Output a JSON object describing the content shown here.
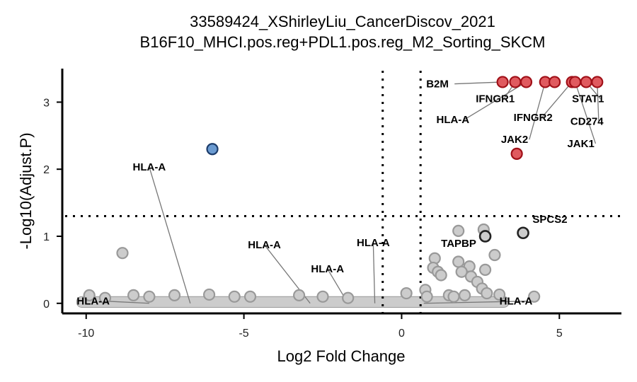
{
  "chart_data": {
    "type": "scatter",
    "title": "33589424_XShirleyLiu_CancerDiscov_2021",
    "subtitle": "B16F10_MHCI.pos.reg+PDL1.pos.reg_M2_Sorting_SKCM",
    "xlabel": "Log2 Fold Change",
    "ylabel": "-Log10(Adjust.P)",
    "xlim": [
      -10.6,
      6.9
    ],
    "ylim": [
      -0.15,
      3.5
    ],
    "x_ticks": [
      -10,
      -5,
      0,
      5
    ],
    "y_ticks": [
      0,
      1,
      2,
      3
    ],
    "grid": false,
    "thresholds": {
      "log2fc": [
        -0.6,
        0.6
      ],
      "neg_log10_p": 1.3
    },
    "colors": {
      "up": "#e05a5f",
      "down": "#6b9bd1",
      "ns": "#cccccc",
      "up_edge": "#a01018",
      "down_edge": "#1d3d6b",
      "ns_edge": "#999999",
      "highlight_edge": "#222222"
    },
    "points": [
      {
        "x": 3.2,
        "y": 3.3,
        "group": "up"
      },
      {
        "x": 3.6,
        "y": 3.3,
        "group": "up"
      },
      {
        "x": 3.95,
        "y": 3.3,
        "group": "up"
      },
      {
        "x": 4.55,
        "y": 3.3,
        "group": "up"
      },
      {
        "x": 4.85,
        "y": 3.3,
        "group": "up"
      },
      {
        "x": 5.4,
        "y": 3.3,
        "group": "up"
      },
      {
        "x": 5.5,
        "y": 3.3,
        "group": "up"
      },
      {
        "x": 5.85,
        "y": 3.3,
        "group": "up"
      },
      {
        "x": 6.2,
        "y": 3.3,
        "group": "up"
      },
      {
        "x": 3.65,
        "y": 2.23,
        "group": "up"
      },
      {
        "x": -6.0,
        "y": 2.3,
        "group": "down"
      },
      {
        "x": 3.85,
        "y": 1.05,
        "group": "highlight"
      },
      {
        "x": 2.65,
        "y": 1.0,
        "group": "highlight"
      },
      {
        "x": -8.85,
        "y": 0.75,
        "group": "ns"
      },
      {
        "x": 1.8,
        "y": 1.08,
        "group": "ns"
      },
      {
        "x": 2.6,
        "y": 1.1,
        "group": "ns"
      },
      {
        "x": 1.05,
        "y": 0.67,
        "group": "ns"
      },
      {
        "x": 1.0,
        "y": 0.53,
        "group": "ns"
      },
      {
        "x": 1.15,
        "y": 0.47,
        "group": "ns"
      },
      {
        "x": 1.25,
        "y": 0.42,
        "group": "ns"
      },
      {
        "x": 1.8,
        "y": 0.62,
        "group": "ns"
      },
      {
        "x": 2.15,
        "y": 0.55,
        "group": "ns"
      },
      {
        "x": 2.95,
        "y": 0.72,
        "group": "ns"
      },
      {
        "x": 1.9,
        "y": 0.47,
        "group": "ns"
      },
      {
        "x": 2.65,
        "y": 0.5,
        "group": "ns"
      },
      {
        "x": 2.2,
        "y": 0.4,
        "group": "ns"
      },
      {
        "x": 2.4,
        "y": 0.32,
        "group": "ns"
      },
      {
        "x": 2.55,
        "y": 0.22,
        "group": "ns"
      },
      {
        "x": 2.7,
        "y": 0.15,
        "group": "ns"
      },
      {
        "x": 3.1,
        "y": 0.13,
        "group": "ns"
      },
      {
        "x": 4.2,
        "y": 0.1,
        "group": "ns"
      },
      {
        "x": 0.75,
        "y": 0.2,
        "group": "ns"
      },
      {
        "x": 0.8,
        "y": 0.1,
        "group": "ns"
      },
      {
        "x": 0.15,
        "y": 0.15,
        "group": "ns"
      },
      {
        "x": 1.5,
        "y": 0.12,
        "group": "ns"
      },
      {
        "x": 1.65,
        "y": 0.1,
        "group": "ns"
      },
      {
        "x": 2.0,
        "y": 0.12,
        "group": "ns"
      },
      {
        "x": -9.9,
        "y": 0.12,
        "group": "ns"
      },
      {
        "x": -9.4,
        "y": 0.08,
        "group": "ns"
      },
      {
        "x": -8.5,
        "y": 0.12,
        "group": "ns"
      },
      {
        "x": -8.0,
        "y": 0.1,
        "group": "ns"
      },
      {
        "x": -7.2,
        "y": 0.12,
        "group": "ns"
      },
      {
        "x": -6.1,
        "y": 0.13,
        "group": "ns"
      },
      {
        "x": -5.3,
        "y": 0.1,
        "group": "ns"
      },
      {
        "x": -4.8,
        "y": 0.1,
        "group": "ns"
      },
      {
        "x": -3.25,
        "y": 0.12,
        "group": "ns"
      },
      {
        "x": -2.5,
        "y": 0.1,
        "group": "ns"
      },
      {
        "x": -1.7,
        "y": 0.08,
        "group": "ns"
      }
    ],
    "labels": [
      {
        "text": "B2M",
        "lx": 0.78,
        "ly": 3.22,
        "ax": 3.2,
        "ay": 3.3,
        "anchor": "start"
      },
      {
        "text": "IFNGR1",
        "lx": 2.35,
        "ly": 3.0,
        "ax": 3.6,
        "ay": 3.3,
        "anchor": "start"
      },
      {
        "text": "HLA-A",
        "lx": 1.1,
        "ly": 2.69,
        "ax": 3.95,
        "ay": 3.3,
        "anchor": "start"
      },
      {
        "text": "IFNGR2",
        "lx": 3.55,
        "ly": 2.72,
        "ax": 5.4,
        "ay": 3.3,
        "anchor": "start"
      },
      {
        "text": "STAT1",
        "lx": 5.4,
        "ly": 3.0,
        "ax": 5.85,
        "ay": 3.3,
        "anchor": "start"
      },
      {
        "text": "CD274",
        "lx": 5.35,
        "ly": 2.66,
        "ax": 6.2,
        "ay": 3.3,
        "anchor": "start"
      },
      {
        "text": "JAK2",
        "lx": 3.15,
        "ly": 2.39,
        "ax": 4.55,
        "ay": 3.3,
        "anchor": "start"
      },
      {
        "text": "JAK1",
        "lx": 5.25,
        "ly": 2.33,
        "ax": 5.5,
        "ay": 3.3,
        "anchor": "start"
      },
      {
        "text": "SPCS2",
        "lx": 4.15,
        "ly": 1.2,
        "ax": null,
        "ay": null,
        "anchor": "start"
      },
      {
        "text": "TAPBP",
        "lx": 1.25,
        "ly": 0.84,
        "ax": null,
        "ay": null,
        "anchor": "start"
      },
      {
        "text": "HLA-A",
        "lx": -8.0,
        "ly": 1.98,
        "ax": -6.7,
        "ay": 0.0,
        "anchor": "middle"
      },
      {
        "text": "HLA-A",
        "lx": -4.35,
        "ly": 0.82,
        "ax": -2.9,
        "ay": 0.0,
        "anchor": "middle"
      },
      {
        "text": "HLA-A",
        "lx": -2.35,
        "ly": 0.46,
        "ax": -1.7,
        "ay": 0.0,
        "anchor": "middle"
      },
      {
        "text": "HLA-A",
        "lx": -0.9,
        "ly": 0.85,
        "ax": -0.85,
        "ay": 0.0,
        "anchor": "middle"
      },
      {
        "text": "HLA-A",
        "lx": -10.3,
        "ly": -0.02,
        "ax": -8.0,
        "ay": 0.0,
        "anchor": "start"
      },
      {
        "text": "HLA-A",
        "lx": 3.1,
        "ly": -0.02,
        "ax": 0.7,
        "ay": 0.0,
        "anchor": "start"
      }
    ]
  }
}
